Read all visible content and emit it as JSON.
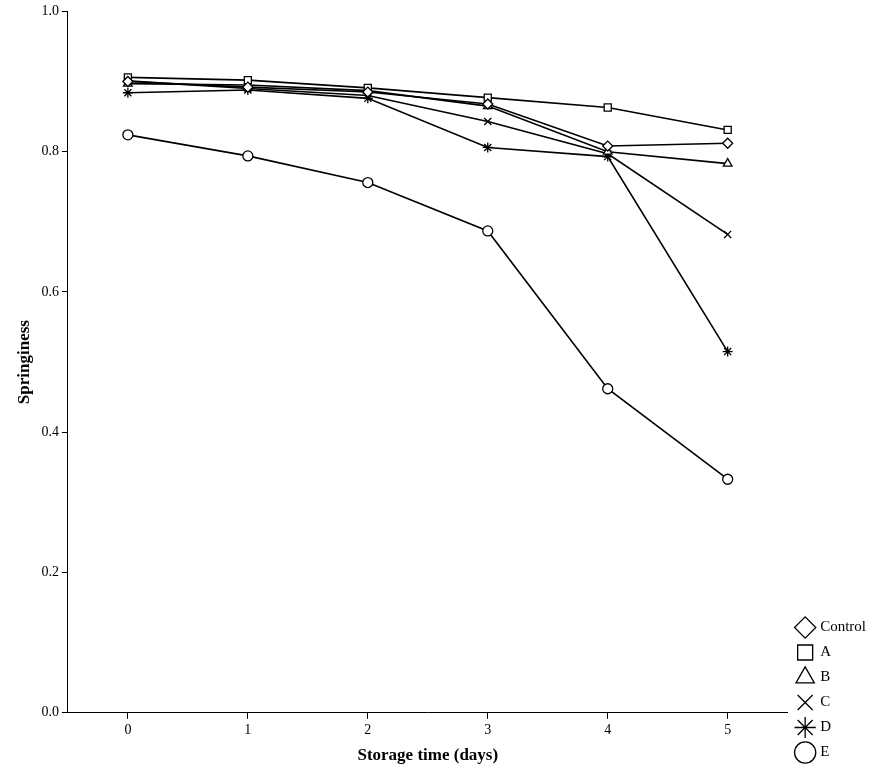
{
  "chart_data": {
    "type": "line",
    "x_label": "Storage time (days)",
    "y_label": "Springiness",
    "categories": [
      "0",
      "1",
      "2",
      "3",
      "4",
      "5"
    ],
    "ylim": [
      0,
      1
    ],
    "yticks": [
      {
        "value": 0,
        "label": "0.0"
      },
      0.2,
      0.4,
      0.6,
      0.8,
      {
        "value": 1,
        "label": "1.0"
      }
    ],
    "grid": false,
    "legend": "lower right",
    "series": [
      {
        "name": "Control",
        "color": "#000000",
        "marker": "diamond",
        "values": [
          0.9,
          0.892,
          0.885,
          0.868,
          0.808,
          0.812
        ]
      },
      {
        "name": "A",
        "color": "#000000",
        "marker": "square",
        "values": [
          0.906,
          0.902,
          0.891,
          0.877,
          0.863,
          0.831
        ]
      },
      {
        "name": "B",
        "color": "#000000",
        "marker": "triangle",
        "values": [
          0.897,
          0.895,
          0.887,
          0.865,
          0.8,
          0.783
        ]
      },
      {
        "name": "C",
        "color": "#000000",
        "marker": "x",
        "values": [
          0.901,
          0.89,
          0.88,
          0.843,
          0.797,
          0.682
        ]
      },
      {
        "name": "D",
        "color": "#000000",
        "marker": "star",
        "values": [
          0.884,
          0.888,
          0.876,
          0.806,
          0.793,
          0.515
        ]
      },
      {
        "name": "E",
        "color": "#000000",
        "marker": "circle",
        "values": [
          0.824,
          0.794,
          0.756,
          0.687,
          0.462,
          0.333
        ]
      }
    ]
  }
}
